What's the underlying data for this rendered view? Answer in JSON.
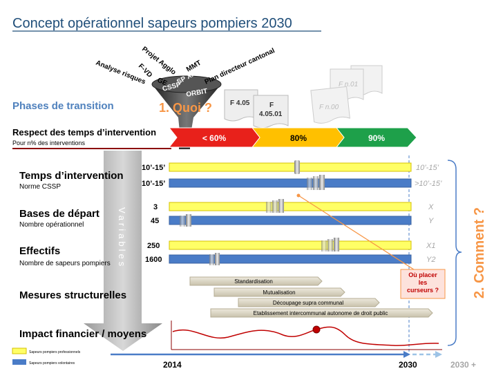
{
  "header": {
    "title": "Concept opérationnel sapeurs pompiers 2030"
  },
  "funnel": {
    "inputs": [
      "Analyse risques",
      "F-VD",
      "Projet Agglo",
      "GE",
      "CSSP",
      "SP XXI",
      "MMT",
      "ORBIT",
      "Plan directeur cantonal"
    ],
    "label": "1. Quoi ?"
  },
  "phases": {
    "label": "Phases de transition",
    "steps": [
      "< 60%",
      "80%",
      "90%"
    ]
  },
  "documents": [
    {
      "lines": [
        "F 4.05"
      ]
    },
    {
      "lines": [
        "F",
        "4.05.01"
      ]
    },
    {
      "lines": [
        "F n.00"
      ]
    },
    {
      "lines": [
        "F n.01"
      ]
    }
  ],
  "respect": {
    "title": "Respect des temps d’intervention",
    "subtitle": "Pour n% des interventions"
  },
  "rows": [
    {
      "title": "Temps d’intervention",
      "subtitle": "Norme CSSP",
      "values": [
        "10’-15’",
        "10’-15’"
      ],
      "targets": [
        "10’-15’",
        ">10’-15’"
      ]
    },
    {
      "title": "Bases de départ",
      "subtitle": "Nombre opérationnel",
      "values": [
        "3",
        "45"
      ],
      "targets": [
        "X",
        "Y"
      ]
    },
    {
      "title": "Effectifs",
      "subtitle": "Nombre de sapeurs pompiers",
      "values": [
        "250",
        "1600"
      ],
      "targets": [
        "X1",
        "Y2"
      ]
    }
  ],
  "variables": "Variables",
  "question": {
    "lines": [
      "Où placer",
      "les",
      "curseurs ?"
    ]
  },
  "comment": "2. Comment ?",
  "measures": {
    "title": "Mesures structurelles",
    "items": [
      "Standardisation",
      "Mutualisation",
      "Découpage supra communal",
      "Etablissement intercommunal autonome de droit public"
    ]
  },
  "impact": {
    "title": "Impact financier / moyens"
  },
  "timeline": {
    "labels": [
      "2014",
      "2030",
      "2030 +"
    ]
  },
  "legend": [
    "Sapeurs pompiers professionnels",
    "Sapeurs pompiers volontaires"
  ]
}
